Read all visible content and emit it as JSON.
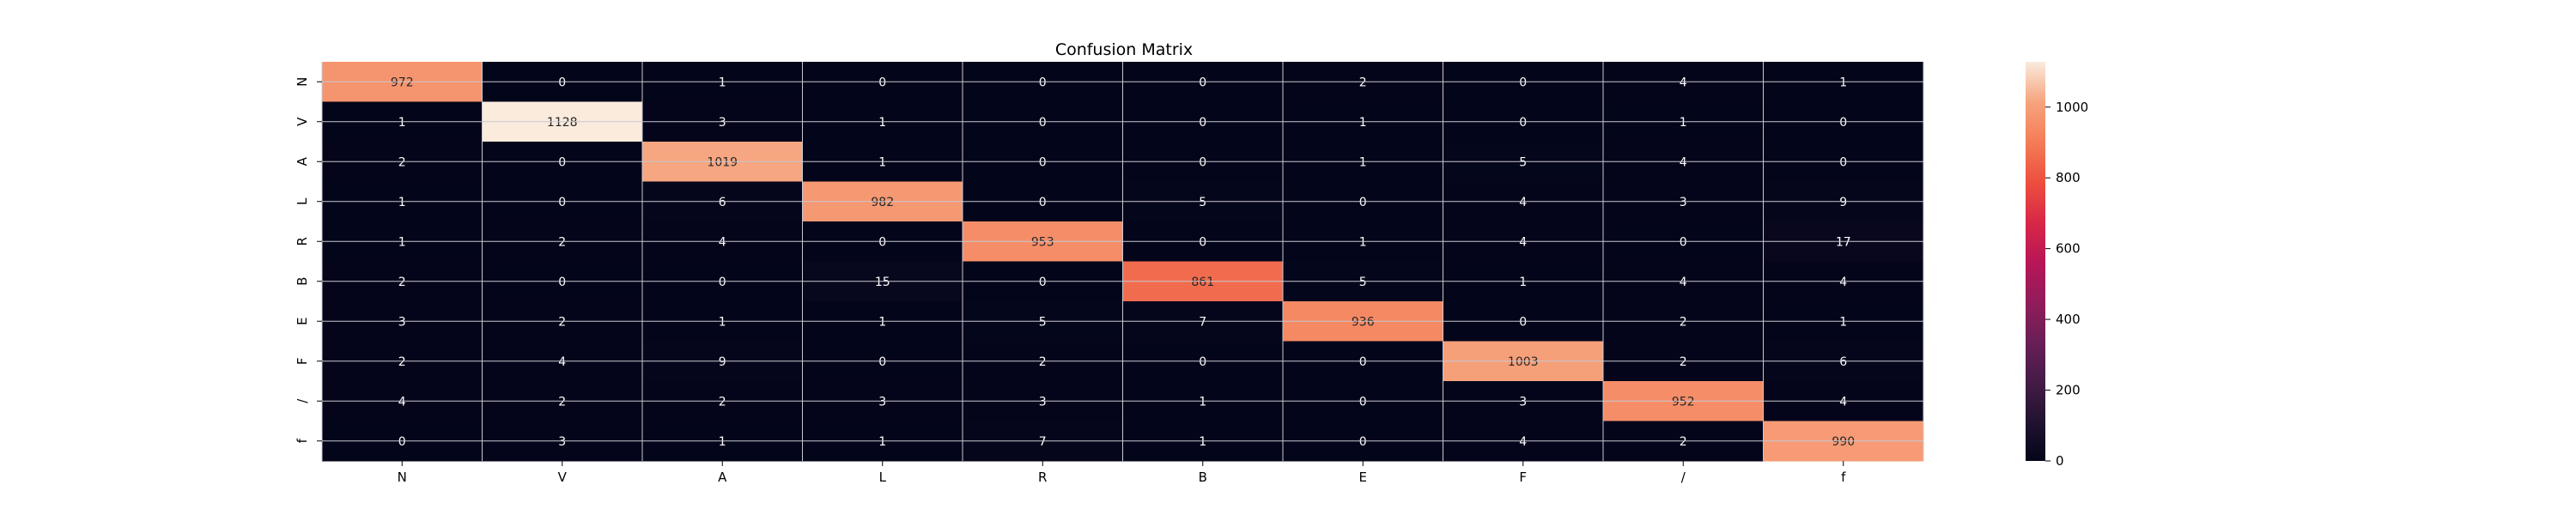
{
  "chart_data": {
    "type": "heatmap",
    "title": "Confusion Matrix",
    "xlabel": "",
    "ylabel": "",
    "x_categories": [
      "N",
      "V",
      "A",
      "L",
      "R",
      "B",
      "E",
      "F",
      "/",
      "f"
    ],
    "y_categories": [
      "N",
      "V",
      "A",
      "L",
      "R",
      "B",
      "E",
      "F",
      "/",
      "f"
    ],
    "values": [
      [
        972,
        0,
        1,
        0,
        0,
        0,
        2,
        0,
        4,
        1
      ],
      [
        1,
        1128,
        3,
        1,
        0,
        0,
        1,
        0,
        1,
        0
      ],
      [
        2,
        0,
        1019,
        1,
        0,
        0,
        1,
        5,
        4,
        0
      ],
      [
        1,
        0,
        6,
        982,
        0,
        5,
        0,
        4,
        3,
        9
      ],
      [
        1,
        2,
        4,
        0,
        953,
        0,
        1,
        4,
        0,
        17
      ],
      [
        2,
        0,
        0,
        15,
        0,
        861,
        5,
        1,
        4,
        4
      ],
      [
        3,
        2,
        1,
        1,
        5,
        7,
        936,
        0,
        2,
        1
      ],
      [
        2,
        4,
        9,
        0,
        2,
        0,
        0,
        1003,
        2,
        6
      ],
      [
        4,
        2,
        2,
        3,
        3,
        1,
        0,
        3,
        952,
        4
      ],
      [
        0,
        3,
        1,
        1,
        7,
        1,
        0,
        4,
        2,
        990
      ]
    ],
    "colorbar": {
      "vmin": 0,
      "vmax": 1128,
      "ticks": [
        0,
        200,
        400,
        600,
        800,
        1000
      ]
    },
    "colormap": "rocket",
    "grid": true,
    "grid_color": "#c8c8d0"
  }
}
